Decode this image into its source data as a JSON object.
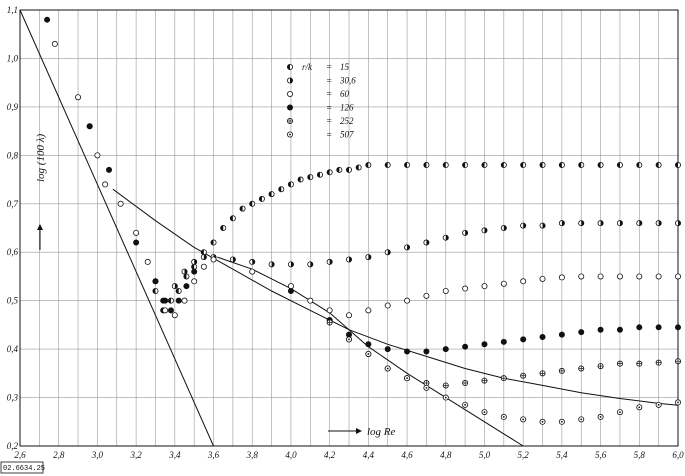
{
  "chart_data": {
    "type": "scatter",
    "title": "",
    "xlabel": "log Re",
    "ylabel": "log (100 λ)",
    "xlim": [
      2.6,
      6.0
    ],
    "ylim": [
      0.2,
      1.1
    ],
    "x_ticks": [
      "2,6",
      "2,8",
      "3,0",
      "3,2",
      "3,4",
      "3,6",
      "3,8",
      "4,0",
      "4,2",
      "4,4",
      "4,6",
      "4,8",
      "5,0",
      "5,2",
      "5,4",
      "5,6",
      "5,8",
      "6,0"
    ],
    "y_ticks": [
      "0,2",
      "0,3",
      "0,4",
      "0,5",
      "0,6",
      "0,7",
      "0,8",
      "0,9",
      "1,0",
      "1,1"
    ],
    "x_tick_values": [
      2.6,
      2.8,
      3.0,
      3.2,
      3.4,
      3.6,
      3.8,
      4.0,
      4.2,
      4.4,
      4.6,
      4.8,
      5.0,
      5.2,
      5.4,
      5.6,
      5.8,
      6.0
    ],
    "y_tick_values": [
      0.2,
      0.3,
      0.4,
      0.5,
      0.6,
      0.7,
      0.8,
      0.9,
      1.0,
      1.1
    ],
    "grid": true,
    "legend_position": "top-center",
    "legend_header": "r/k",
    "lines": [
      {
        "points": [
          [
            2.6,
            1.1
          ],
          [
            3.6,
            0.2
          ]
        ]
      },
      {
        "points": [
          [
            3.08,
            0.73
          ],
          [
            3.3,
            0.665
          ],
          [
            3.5,
            0.61
          ],
          [
            3.7,
            0.565
          ],
          [
            3.9,
            0.52
          ],
          [
            4.1,
            0.48
          ],
          [
            4.3,
            0.44
          ],
          [
            4.5,
            0.41
          ],
          [
            4.7,
            0.385
          ],
          [
            4.9,
            0.36
          ],
          [
            5.1,
            0.34
          ],
          [
            5.3,
            0.325
          ],
          [
            5.5,
            0.31
          ],
          [
            5.7,
            0.298
          ],
          [
            5.9,
            0.288
          ],
          [
            6.0,
            0.284
          ]
        ]
      },
      {
        "points": [
          [
            3.62,
            0.59
          ],
          [
            3.8,
            0.565
          ],
          [
            4.0,
            0.525
          ],
          [
            4.2,
            0.475
          ],
          [
            4.4,
            0.405
          ],
          [
            4.6,
            0.35
          ],
          [
            4.8,
            0.3
          ],
          [
            5.0,
            0.25
          ],
          [
            5.1,
            0.225
          ],
          [
            5.2,
            0.2
          ]
        ]
      }
    ],
    "series": [
      {
        "name": "15",
        "marker": "half-left",
        "values": [
          [
            3.3,
            0.52
          ],
          [
            3.34,
            0.48
          ],
          [
            3.38,
            0.5
          ],
          [
            3.42,
            0.52
          ],
          [
            3.46,
            0.55
          ],
          [
            3.5,
            0.57
          ],
          [
            3.55,
            0.6
          ],
          [
            3.6,
            0.62
          ],
          [
            3.65,
            0.65
          ],
          [
            3.7,
            0.67
          ],
          [
            3.75,
            0.69
          ],
          [
            3.8,
            0.7
          ],
          [
            3.85,
            0.71
          ],
          [
            3.9,
            0.72
          ],
          [
            3.95,
            0.73
          ],
          [
            4.0,
            0.74
          ],
          [
            4.05,
            0.75
          ],
          [
            4.1,
            0.755
          ],
          [
            4.15,
            0.76
          ],
          [
            4.2,
            0.765
          ],
          [
            4.25,
            0.77
          ],
          [
            4.3,
            0.77
          ],
          [
            4.35,
            0.775
          ],
          [
            4.4,
            0.78
          ],
          [
            4.5,
            0.78
          ],
          [
            4.6,
            0.78
          ],
          [
            4.7,
            0.78
          ],
          [
            4.8,
            0.78
          ],
          [
            4.9,
            0.78
          ],
          [
            5.0,
            0.78
          ],
          [
            5.1,
            0.78
          ],
          [
            5.2,
            0.78
          ],
          [
            5.3,
            0.78
          ],
          [
            5.4,
            0.78
          ],
          [
            5.5,
            0.78
          ],
          [
            5.6,
            0.78
          ],
          [
            5.7,
            0.78
          ],
          [
            5.8,
            0.78
          ],
          [
            5.9,
            0.78
          ],
          [
            6.0,
            0.78
          ]
        ]
      },
      {
        "name": "30,6",
        "marker": "half-right",
        "values": [
          [
            3.35,
            0.5
          ],
          [
            3.4,
            0.53
          ],
          [
            3.45,
            0.56
          ],
          [
            3.5,
            0.58
          ],
          [
            3.55,
            0.59
          ],
          [
            3.6,
            0.59
          ],
          [
            3.7,
            0.585
          ],
          [
            3.8,
            0.58
          ],
          [
            3.9,
            0.575
          ],
          [
            4.0,
            0.575
          ],
          [
            4.1,
            0.575
          ],
          [
            4.2,
            0.58
          ],
          [
            4.3,
            0.585
          ],
          [
            4.4,
            0.59
          ],
          [
            4.5,
            0.6
          ],
          [
            4.6,
            0.61
          ],
          [
            4.7,
            0.62
          ],
          [
            4.8,
            0.63
          ],
          [
            4.9,
            0.64
          ],
          [
            5.0,
            0.645
          ],
          [
            5.1,
            0.65
          ],
          [
            5.2,
            0.655
          ],
          [
            5.3,
            0.655
          ],
          [
            5.4,
            0.66
          ],
          [
            5.5,
            0.66
          ],
          [
            5.6,
            0.66
          ],
          [
            5.7,
            0.66
          ],
          [
            5.8,
            0.66
          ],
          [
            5.9,
            0.66
          ],
          [
            6.0,
            0.66
          ]
        ]
      },
      {
        "name": "60",
        "marker": "open",
        "values": [
          [
            2.78,
            1.03
          ],
          [
            2.9,
            0.92
          ],
          [
            2.96,
            0.86
          ],
          [
            3.0,
            0.8
          ],
          [
            3.04,
            0.74
          ],
          [
            3.12,
            0.7
          ],
          [
            3.2,
            0.64
          ],
          [
            3.26,
            0.58
          ],
          [
            3.3,
            0.54
          ],
          [
            3.35,
            0.48
          ],
          [
            3.4,
            0.47
          ],
          [
            3.45,
            0.5
          ],
          [
            3.5,
            0.54
          ],
          [
            3.55,
            0.57
          ],
          [
            3.6,
            0.585
          ],
          [
            3.8,
            0.56
          ],
          [
            4.0,
            0.53
          ],
          [
            4.1,
            0.5
          ],
          [
            4.2,
            0.48
          ],
          [
            4.3,
            0.47
          ],
          [
            4.4,
            0.48
          ],
          [
            4.5,
            0.49
          ],
          [
            4.6,
            0.5
          ],
          [
            4.7,
            0.51
          ],
          [
            4.8,
            0.52
          ],
          [
            4.9,
            0.525
          ],
          [
            5.0,
            0.53
          ],
          [
            5.1,
            0.535
          ],
          [
            5.2,
            0.54
          ],
          [
            5.3,
            0.545
          ],
          [
            5.4,
            0.548
          ],
          [
            5.5,
            0.55
          ],
          [
            5.6,
            0.55
          ],
          [
            5.7,
            0.55
          ],
          [
            5.8,
            0.55
          ],
          [
            5.9,
            0.55
          ],
          [
            6.0,
            0.55
          ]
        ]
      },
      {
        "name": "126",
        "marker": "filled",
        "values": [
          [
            2.74,
            1.08
          ],
          [
            2.96,
            0.86
          ],
          [
            3.06,
            0.77
          ],
          [
            3.2,
            0.62
          ],
          [
            3.3,
            0.54
          ],
          [
            3.34,
            0.5
          ],
          [
            3.38,
            0.48
          ],
          [
            3.42,
            0.5
          ],
          [
            3.46,
            0.53
          ],
          [
            3.5,
            0.56
          ],
          [
            4.0,
            0.52
          ],
          [
            4.2,
            0.46
          ],
          [
            4.3,
            0.43
          ],
          [
            4.4,
            0.41
          ],
          [
            4.5,
            0.4
          ],
          [
            4.6,
            0.395
          ],
          [
            4.7,
            0.395
          ],
          [
            4.8,
            0.4
          ],
          [
            4.9,
            0.405
          ],
          [
            5.0,
            0.41
          ],
          [
            5.1,
            0.415
          ],
          [
            5.2,
            0.42
          ],
          [
            5.3,
            0.425
          ],
          [
            5.4,
            0.43
          ],
          [
            5.5,
            0.435
          ],
          [
            5.6,
            0.44
          ],
          [
            5.7,
            0.44
          ],
          [
            5.8,
            0.445
          ],
          [
            5.9,
            0.445
          ],
          [
            6.0,
            0.445
          ]
        ]
      },
      {
        "name": "252",
        "marker": "crossed",
        "values": [
          [
            4.2,
            0.455
          ],
          [
            4.3,
            0.42
          ],
          [
            4.4,
            0.39
          ],
          [
            4.5,
            0.36
          ],
          [
            4.6,
            0.34
          ],
          [
            4.7,
            0.33
          ],
          [
            4.8,
            0.325
          ],
          [
            4.9,
            0.33
          ],
          [
            5.0,
            0.335
          ],
          [
            5.1,
            0.34
          ],
          [
            5.2,
            0.345
          ],
          [
            5.3,
            0.35
          ],
          [
            5.4,
            0.355
          ],
          [
            5.5,
            0.36
          ],
          [
            5.6,
            0.365
          ],
          [
            5.7,
            0.37
          ],
          [
            5.8,
            0.37
          ],
          [
            5.9,
            0.372
          ],
          [
            6.0,
            0.375
          ]
        ]
      },
      {
        "name": "507",
        "marker": "dotted",
        "values": [
          [
            4.3,
            0.42
          ],
          [
            4.4,
            0.39
          ],
          [
            4.5,
            0.36
          ],
          [
            4.6,
            0.34
          ],
          [
            4.7,
            0.32
          ],
          [
            4.8,
            0.3
          ],
          [
            4.9,
            0.285
          ],
          [
            5.0,
            0.27
          ],
          [
            5.1,
            0.26
          ],
          [
            5.2,
            0.255
          ],
          [
            5.3,
            0.25
          ],
          [
            5.4,
            0.25
          ],
          [
            5.5,
            0.255
          ],
          [
            5.6,
            0.26
          ],
          [
            5.7,
            0.27
          ],
          [
            5.8,
            0.28
          ],
          [
            5.9,
            0.285
          ],
          [
            6.0,
            0.29
          ]
        ]
      }
    ]
  },
  "figure_code": "02.6634.25"
}
